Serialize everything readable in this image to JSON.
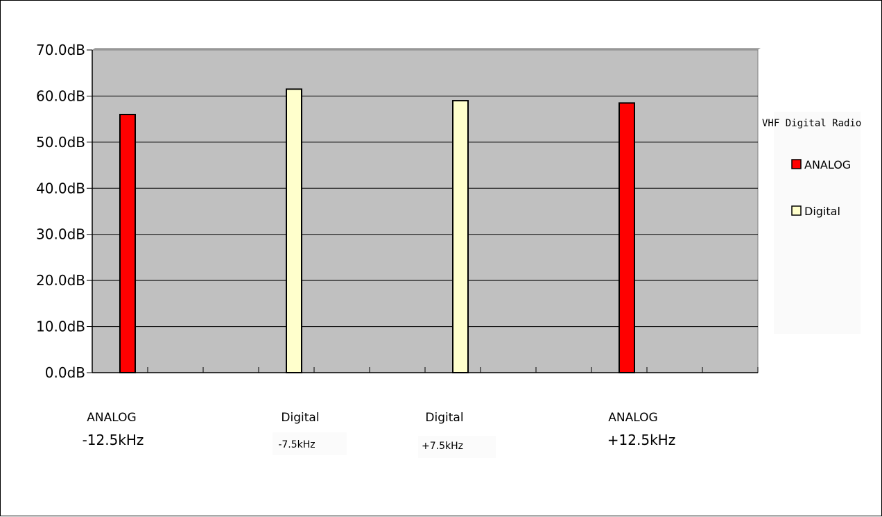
{
  "chart_data": {
    "type": "bar",
    "categories": [
      {
        "name": "ANALOG",
        "sub": "-12.5kHz"
      },
      {
        "name": "Digital",
        "sub": "-7.5kHz"
      },
      {
        "name": "Digital",
        "sub": "+7.5kHz"
      },
      {
        "name": "ANALOG",
        "sub": "+12.5kHz"
      }
    ],
    "values": [
      56,
      61.5,
      59,
      58.5
    ],
    "units": "dB",
    "value_series": [
      "ANALOG",
      "Digital",
      "Digital",
      "ANALOG"
    ],
    "series": [
      {
        "name": "ANALOG",
        "color": "#ff0000"
      },
      {
        "name": "Digital",
        "color": "#ffffcc"
      }
    ],
    "legend_title": "VHF Digital Radio",
    "legend_position": "right",
    "ylim": [
      0,
      70
    ],
    "yticks": [
      "0.0dB",
      "10.0dB",
      "20.0dB",
      "30.0dB",
      "40.0dB",
      "50.0dB",
      "60.0dB",
      "70.0dB"
    ],
    "grid": true,
    "plot_background": "#c0c0c0"
  }
}
